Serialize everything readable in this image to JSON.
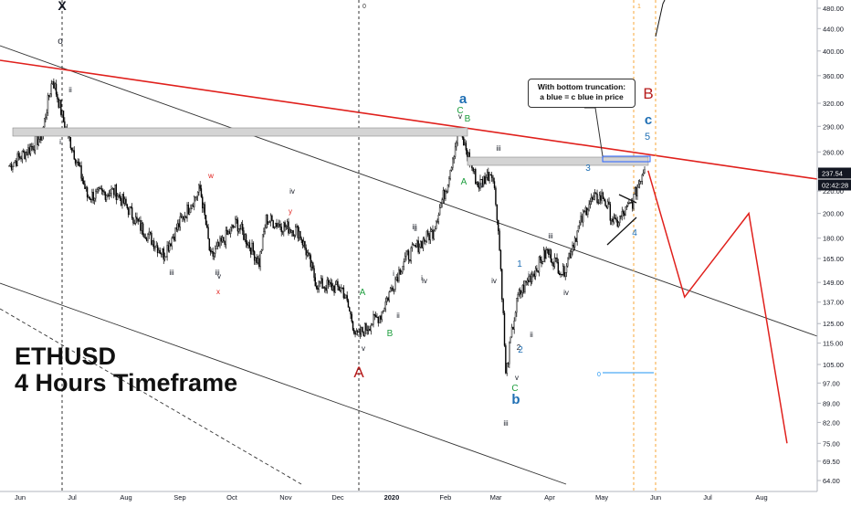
{
  "chart_data": {
    "type": "candlestick",
    "title": "ETHUSD",
    "subtitle": "4 Hours Timeframe",
    "x_ticks": [
      "Jun",
      "Jul",
      "Aug",
      "Sep",
      "Oct",
      "Nov",
      "Dec",
      "2020",
      "Feb",
      "Mar",
      "Apr",
      "May",
      "Jun",
      "Jul",
      "Aug"
    ],
    "y_ticks": [
      "480.00",
      "440.00",
      "400.00",
      "360.00",
      "320.00",
      "290.00",
      "260.00",
      "240.00",
      "220.00",
      "200.00",
      "180.00",
      "165.00",
      "149.00",
      "137.00",
      "125.00",
      "115.00",
      "105.00",
      "97.00",
      "89.00",
      "82.00",
      "75.00",
      "69.50",
      "64.00"
    ],
    "y_scale": "log",
    "price_label": "237.54",
    "countdown_label": "02:42:28",
    "price_path_approx": [
      {
        "x": "2019-06-01",
        "y": 245
      },
      {
        "x": "2019-06-12",
        "y": 262
      },
      {
        "x": "2019-06-20",
        "y": 280
      },
      {
        "x": "2019-06-26",
        "y": 355
      },
      {
        "x": "2019-07-03",
        "y": 290
      },
      {
        "x": "2019-07-16",
        "y": 215
      },
      {
        "x": "2019-08-01",
        "y": 220
      },
      {
        "x": "2019-08-15",
        "y": 190
      },
      {
        "x": "2019-08-29",
        "y": 168
      },
      {
        "x": "2019-09-19",
        "y": 222
      },
      {
        "x": "2019-09-25",
        "y": 165
      },
      {
        "x": "2019-10-10",
        "y": 192
      },
      {
        "x": "2019-10-23",
        "y": 162
      },
      {
        "x": "2019-10-27",
        "y": 195
      },
      {
        "x": "2019-11-15",
        "y": 185
      },
      {
        "x": "2019-11-25",
        "y": 148
      },
      {
        "x": "2019-12-10",
        "y": 145
      },
      {
        "x": "2019-12-18",
        "y": 118
      },
      {
        "x": "2020-01-01",
        "y": 130
      },
      {
        "x": "2020-01-15",
        "y": 165
      },
      {
        "x": "2020-01-31",
        "y": 185
      },
      {
        "x": "2020-02-08",
        "y": 225
      },
      {
        "x": "2020-02-15",
        "y": 285
      },
      {
        "x": "2020-02-26",
        "y": 225
      },
      {
        "x": "2020-03-05",
        "y": 240
      },
      {
        "x": "2020-03-08",
        "y": 200
      },
      {
        "x": "2020-03-13",
        "y": 100
      },
      {
        "x": "2020-03-20",
        "y": 140
      },
      {
        "x": "2020-04-06",
        "y": 170
      },
      {
        "x": "2020-04-15",
        "y": 155
      },
      {
        "x": "2020-04-30",
        "y": 210
      },
      {
        "x": "2020-05-08",
        "y": 215
      },
      {
        "x": "2020-05-15",
        "y": 190
      },
      {
        "x": "2020-05-25",
        "y": 210
      },
      {
        "x": "2020-06-01",
        "y": 245
      },
      {
        "x": "2020-06-02",
        "y": 237.54
      }
    ],
    "projection_path": [
      {
        "x": "2020-06-03",
        "y": 240
      },
      {
        "x": "2020-06-24",
        "y": 140
      },
      {
        "x": "2020-07-31",
        "y": 200
      },
      {
        "x": "2020-08-22",
        "y": 75
      }
    ],
    "labels_black": [
      "X",
      "o",
      "ii",
      "i",
      "iii",
      "v",
      "iv",
      "iii",
      "v",
      "ii",
      "i",
      "iv",
      "ii",
      "iii",
      "i",
      "i",
      "iv",
      "v",
      "iii",
      "iv",
      "ii",
      "i",
      "iii",
      "iv",
      "2",
      "v",
      "iii"
    ],
    "labels_red": [
      "w",
      "x",
      "y"
    ],
    "labels_green": [
      "A",
      "B",
      "C",
      "B",
      "A",
      "C"
    ],
    "labels_darkred": [
      "A",
      "B"
    ],
    "labels_blue": [
      "a",
      "c",
      "5",
      "3",
      "4",
      "1",
      "2",
      "b"
    ],
    "fib_labels": [
      "0",
      "1",
      "0"
    ],
    "annotation": [
      "With bottom truncation:",
      "a blue = c blue in price"
    ]
  }
}
